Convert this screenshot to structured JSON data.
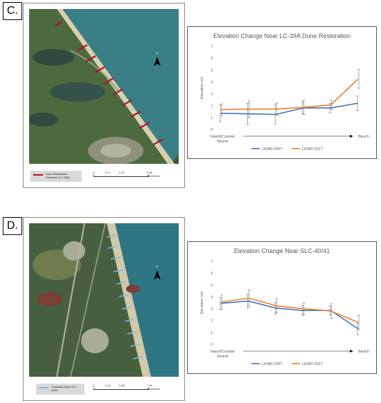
{
  "panels": [
    {
      "label": "C.",
      "map": {
        "legend_text": "Dune Restoration Transects (LC-39A)",
        "legend_color": "#b0102a",
        "scale_labels": [
          "0",
          "0.17",
          "0.34",
          "0.68 Kilometers"
        ],
        "north_label": "N"
      },
      "chart_data": {
        "type": "line",
        "title": "Elevation Change Near LC-39A Dune Restoration",
        "ylabel": "Elevation (m)",
        "xlabel_left": "Inland/Coastal Strand",
        "xlabel_right": "Beach",
        "ylim": [
          0,
          7
        ],
        "yticks": [
          "0",
          "1",
          "2",
          "3",
          "4",
          "5",
          "6",
          "7"
        ],
        "x": [
          1,
          2,
          3,
          4,
          5,
          6
        ],
        "series": [
          {
            "name": "LiDAR 2007",
            "color": "#4472c4",
            "values": [
              1.35,
              1.3,
              1.25,
              1.8,
              1.8,
              2.2
            ],
            "err": [
              0.7,
              0.9,
              0.8,
              0.5,
              0.4,
              0.6
            ]
          },
          {
            "name": "LiDAR 2017",
            "color": "#ed7d31",
            "values": [
              1.65,
              1.7,
              1.7,
              1.85,
              2.05,
              4.25
            ],
            "err": [
              0.5,
              0.7,
              0.5,
              0.6,
              0.4,
              0.8
            ]
          }
        ],
        "grid": false,
        "legend": "bottom"
      }
    },
    {
      "label": "D.",
      "map": {
        "legend_text": "Transects Near SLC-40/41",
        "legend_color": "#7fb8e6",
        "scale_labels": [
          "0",
          "0.34",
          "0.68",
          "1.36 Kilometers"
        ],
        "north_label": "N"
      },
      "chart_data": {
        "type": "line",
        "title": "Elevation Change Near SLC-40/41",
        "ylabel": "Elevation (m)",
        "xlabel_left": "Inland/Coastal Strand",
        "xlabel_right": "Beach",
        "ylim": [
          0,
          7
        ],
        "yticks": [
          "0",
          "1",
          "2",
          "3",
          "4",
          "5",
          "6",
          "7"
        ],
        "x": [
          1,
          2,
          3,
          4,
          5,
          6
        ],
        "series": [
          {
            "name": "LiDAR 2007",
            "color": "#4472c4",
            "values": [
              3.45,
              3.65,
              3.05,
              2.85,
              2.85,
              1.3
            ],
            "err": [
              0.5,
              0.6,
              0.5,
              0.4,
              0.4,
              0.5
            ]
          },
          {
            "name": "LiDAR 2017",
            "color": "#ed7d31",
            "values": [
              3.55,
              3.9,
              3.25,
              3.0,
              2.8,
              1.85
            ],
            "err": [
              0.6,
              0.7,
              0.6,
              0.5,
              0.6,
              0.6
            ]
          }
        ],
        "grid": false,
        "legend": "bottom"
      }
    }
  ]
}
